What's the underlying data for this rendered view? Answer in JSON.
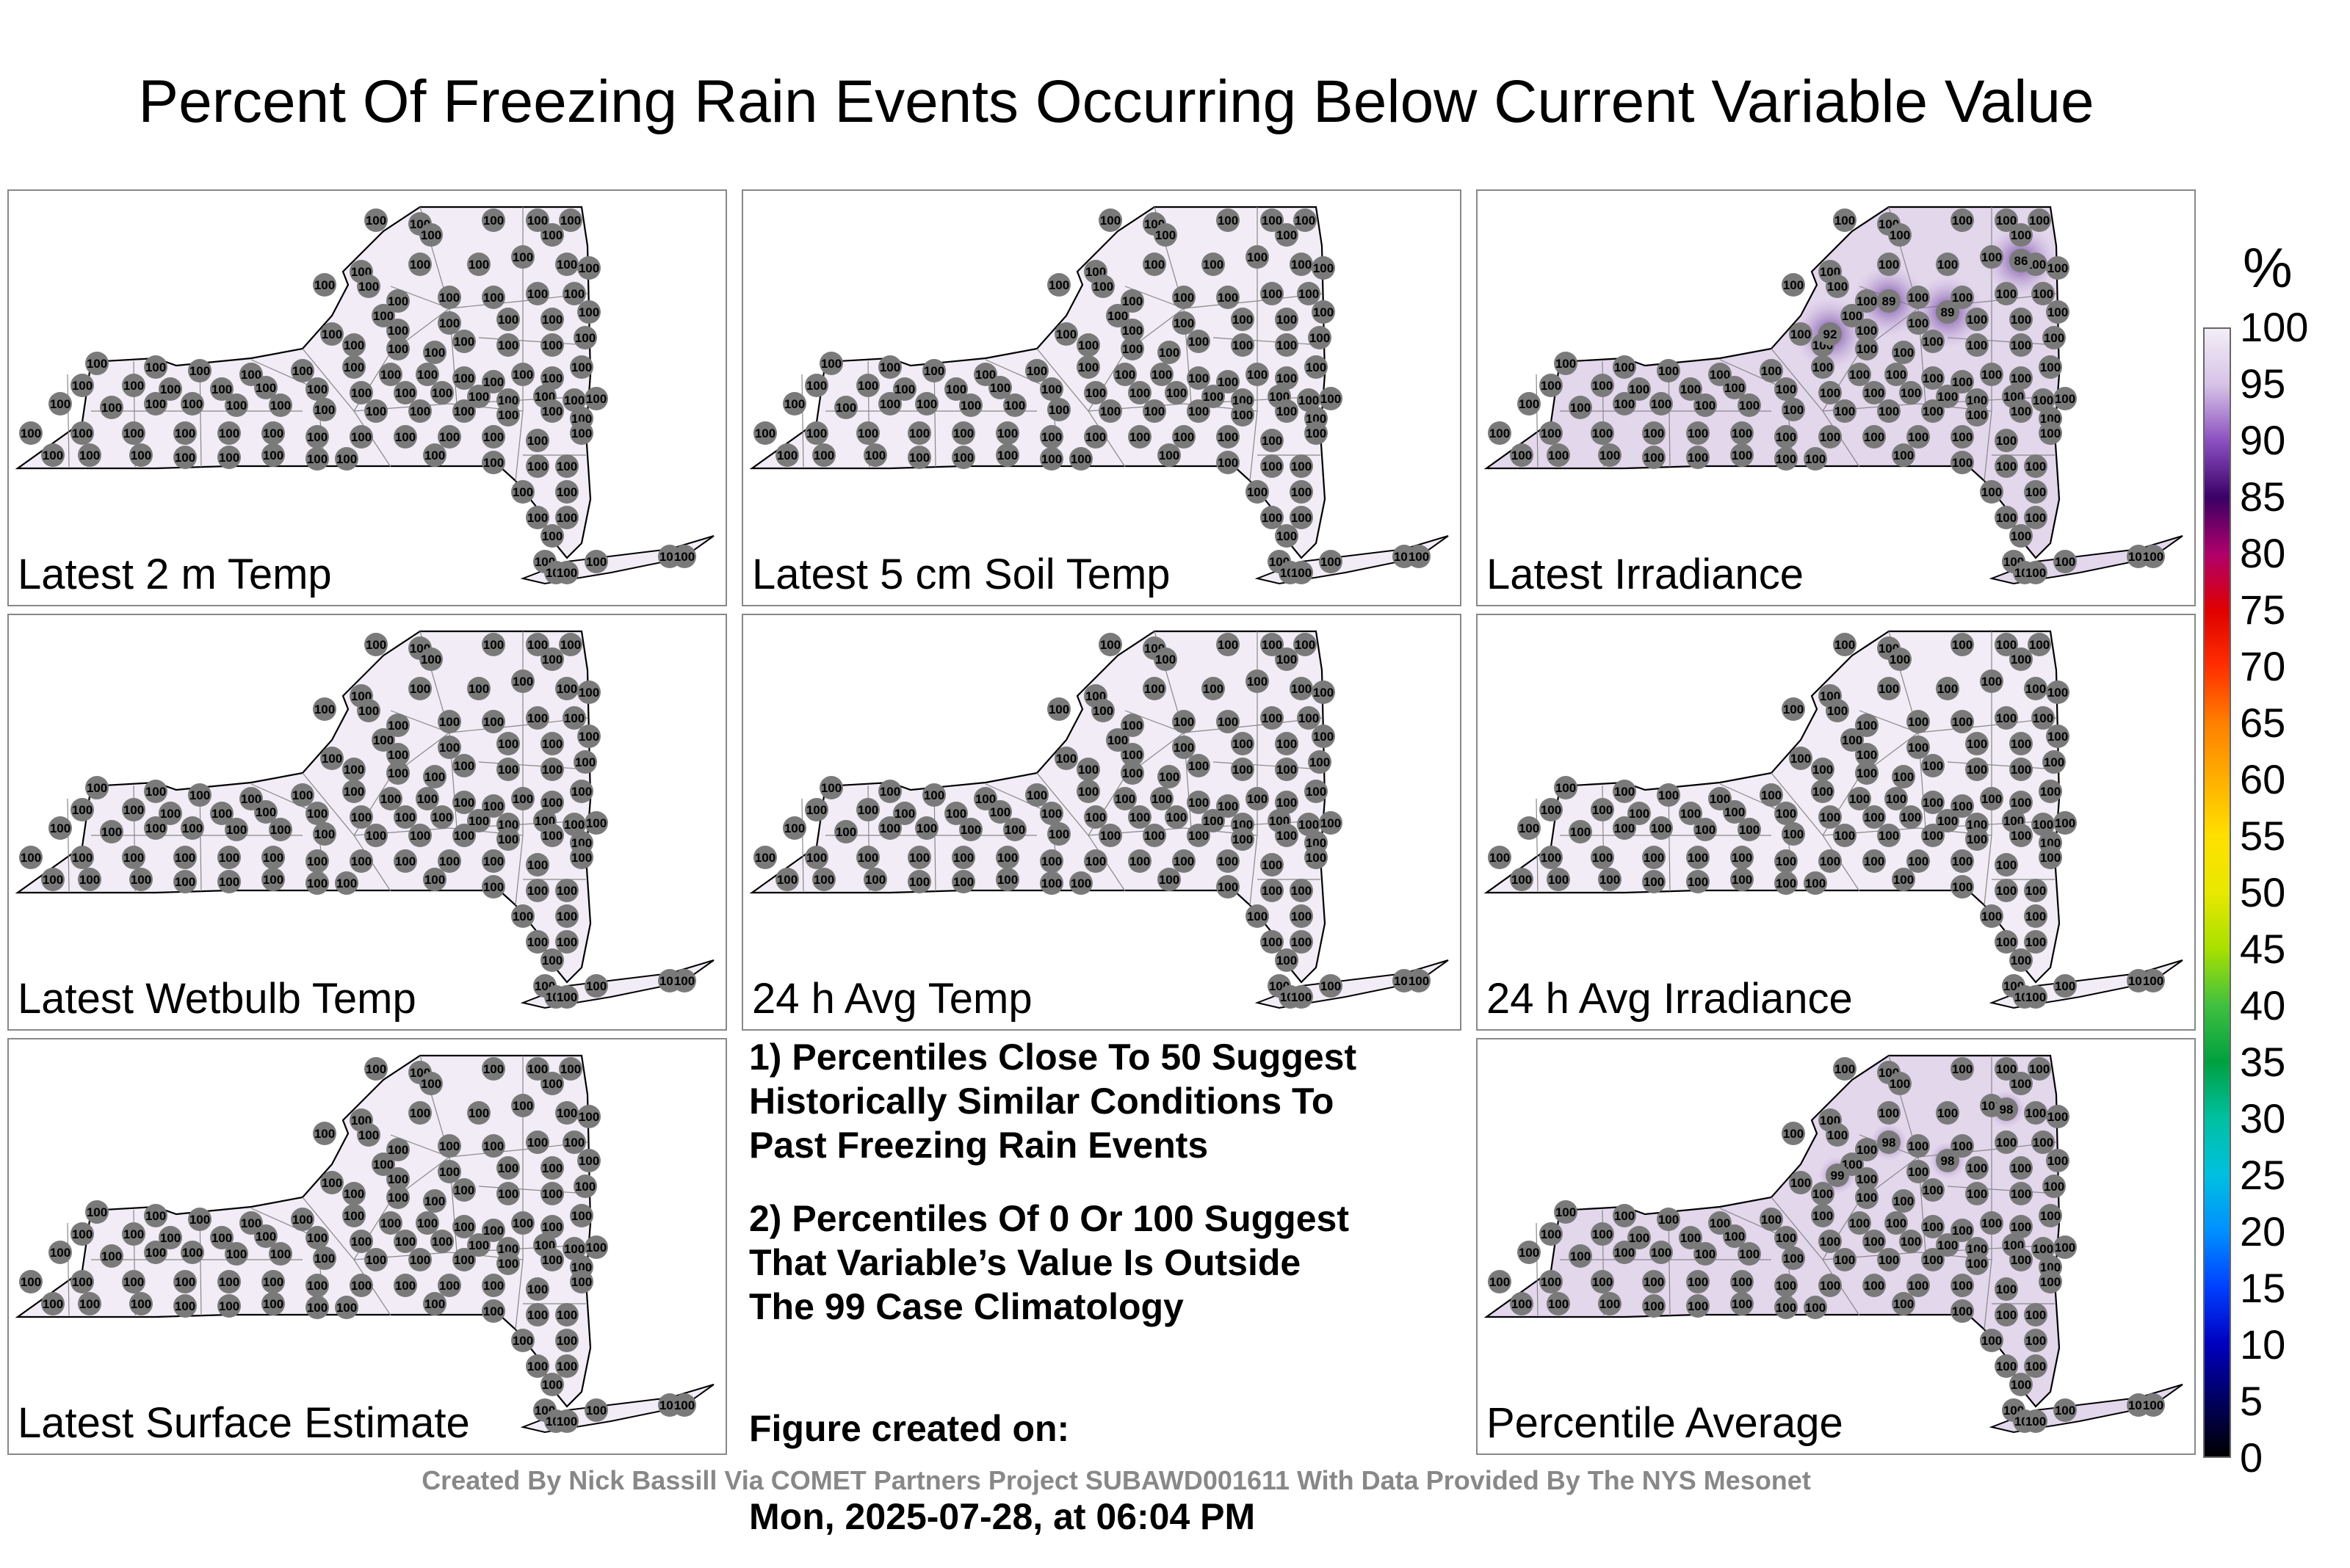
{
  "title": "Percent Of Freezing Rain Events Occurring Below Current Variable Value",
  "panels": [
    {
      "label": "Latest 2 m Temp",
      "fill": "#f1ecf5",
      "value": "100"
    },
    {
      "label": "Latest 5 cm Soil Temp",
      "fill": "#f1ecf5",
      "value": "100"
    },
    {
      "label": "Latest Irradiance",
      "fill": "#e3d7ec",
      "value": "100",
      "highlights": [
        "86",
        "89",
        "89",
        "92"
      ]
    },
    {
      "label": "Latest Wetbulb Temp",
      "fill": "#f1ecf5",
      "value": "100"
    },
    {
      "label": "24 h Avg Temp",
      "fill": "#f1ecf5",
      "value": "100"
    },
    {
      "label": "24 h Avg Irradiance",
      "fill": "#f1ecf5",
      "value": "100"
    },
    {
      "label": "Latest Surface Estimate",
      "fill": "#f1ecf5",
      "value": "100"
    },
    {
      "label": "Percentile Average",
      "fill": "#e3d7ec",
      "value": "100",
      "highlights": [
        "98",
        "98",
        "98",
        "99"
      ]
    }
  ],
  "notes": {
    "note1": "1) Percentiles Close To 50 Suggest\nHistorically Similar Conditions To\nPast Freezing Rain Events",
    "note2": "2) Percentiles Of 0 Or 100 Suggest\nThat Variable’s Value Is Outside\nThe 99 Case Climatology",
    "created_label": "Figure created on:",
    "created_date": "Mon, 2025-07-28, at 06:04 PM"
  },
  "credit": "Created By Nick Bassill Via COMET Partners Project SUBAWD001611 With Data Provided By The NYS Mesonet",
  "colorbar": {
    "unit": "%",
    "ticks": [
      "100",
      "95",
      "90",
      "85",
      "80",
      "75",
      "70",
      "65",
      "60",
      "55",
      "50",
      "45",
      "40",
      "35",
      "30",
      "25",
      "20",
      "15",
      "10",
      "5",
      "0"
    ],
    "stops": [
      "#f3eef7",
      "#d6c2e6",
      "#8a4fc0",
      "#3b0066",
      "#b0006a",
      "#e00000",
      "#ff3000",
      "#ff8000",
      "#ffb000",
      "#ffe000",
      "#e8e800",
      "#a8e000",
      "#40c040",
      "#00a040",
      "#00c0a0",
      "#00c0e0",
      "#0090ff",
      "#0040ff",
      "#0000c0",
      "#000060",
      "#000000"
    ]
  }
}
